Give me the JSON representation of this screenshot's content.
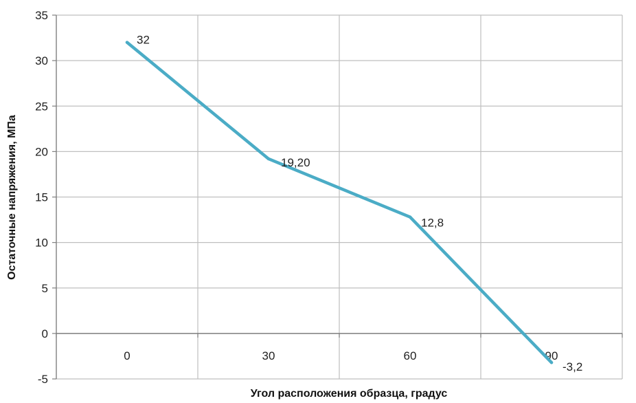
{
  "chart_data": {
    "type": "line",
    "x": [
      0,
      30,
      60,
      90
    ],
    "x_tick_labels": [
      "0",
      "30",
      "60",
      "90"
    ],
    "series": [
      {
        "values": [
          32,
          19.2,
          12.8,
          -3.2
        ],
        "data_labels": [
          "32",
          "19,20",
          "12,8",
          "-3,2"
        ],
        "color": "#4bacc6"
      }
    ],
    "xlabel": "Угол расположения образца, градус",
    "ylabel": "Остаточные напряжения, МПа",
    "ylim": [
      -5,
      35
    ],
    "y_ticks": [
      -5,
      0,
      5,
      10,
      15,
      20,
      25,
      30,
      35
    ],
    "grid": true,
    "legend": "none",
    "gridline_color": "#bfbfbf",
    "axis_color": "#7f7f7f"
  }
}
